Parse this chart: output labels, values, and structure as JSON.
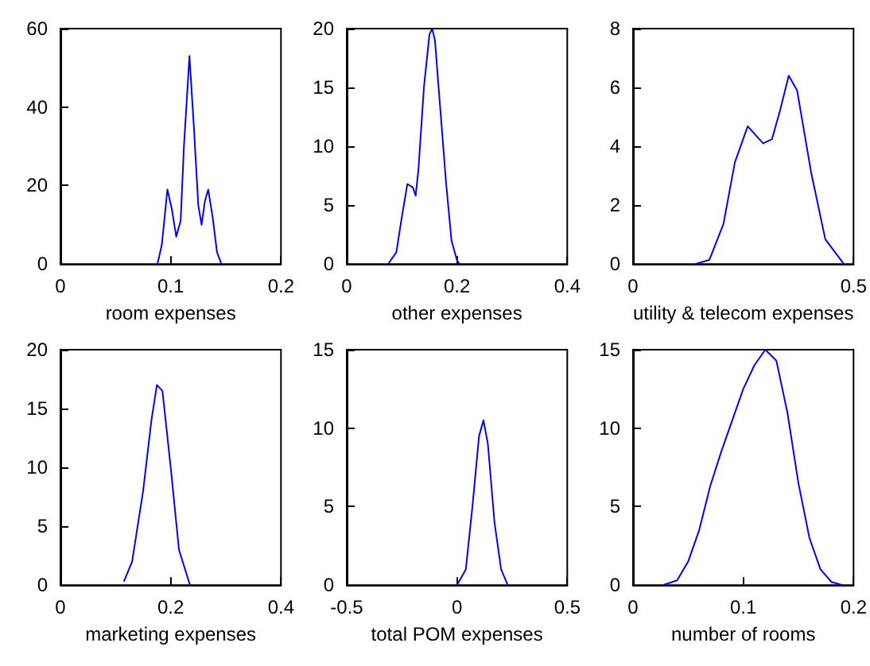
{
  "chart_data": [
    {
      "type": "line",
      "xlabel": "room expenses",
      "color": "#0000ff",
      "xlim": [
        0,
        0.2
      ],
      "ylim": [
        0,
        60
      ],
      "xticks": [
        0,
        0.1,
        0.2
      ],
      "yticks": [
        0,
        20,
        40,
        60
      ],
      "grid": false,
      "x": [
        0.088,
        0.092,
        0.097,
        0.101,
        0.105,
        0.109,
        0.112,
        0.117,
        0.121,
        0.125,
        0.128,
        0.131,
        0.134,
        0.138,
        0.142,
        0.146
      ],
      "values": [
        0,
        5,
        19,
        14,
        7,
        11,
        30,
        53,
        35,
        15,
        10,
        16,
        19,
        12,
        3,
        0
      ]
    },
    {
      "type": "line",
      "xlabel": "other expenses",
      "color": "#0000ff",
      "xlim": [
        0,
        0.4
      ],
      "ylim": [
        0,
        20
      ],
      "xticks": [
        0,
        0.2,
        0.4
      ],
      "yticks": [
        0,
        5,
        10,
        15,
        20
      ],
      "grid": false,
      "x": [
        0.075,
        0.09,
        0.1,
        0.11,
        0.12,
        0.125,
        0.13,
        0.14,
        0.15,
        0.155,
        0.16,
        0.17,
        0.18,
        0.19,
        0.2,
        0.205
      ],
      "values": [
        0,
        1,
        4,
        6.8,
        6.5,
        5.8,
        8,
        15,
        19.5,
        20,
        19,
        13,
        7,
        2,
        0.3,
        0
      ]
    },
    {
      "type": "line",
      "xlabel": "utility & telecom expenses",
      "color": "#0000ff",
      "xlim": [
        0,
        0.5
      ],
      "ylim": [
        0,
        8
      ],
      "xticks": [
        0,
        0.5
      ],
      "yticks": [
        0,
        2,
        4,
        6,
        8
      ],
      "grid": false,
      "x": [
        0.141,
        0.173,
        0.205,
        0.231,
        0.26,
        0.295,
        0.315,
        0.333,
        0.353,
        0.372,
        0.404,
        0.436,
        0.478
      ],
      "values": [
        0,
        0.14,
        1.36,
        3.46,
        4.68,
        4.1,
        4.24,
        5.2,
        6.4,
        5.9,
        3.1,
        0.84,
        0
      ]
    },
    {
      "type": "line",
      "xlabel": "marketing expenses",
      "color": "#0000ff",
      "xlim": [
        0,
        0.4
      ],
      "ylim": [
        0,
        20
      ],
      "xticks": [
        0,
        0.2,
        0.4
      ],
      "yticks": [
        0,
        5,
        10,
        15,
        20
      ],
      "grid": false,
      "x": [
        0.115,
        0.13,
        0.15,
        0.165,
        0.175,
        0.185,
        0.2,
        0.215,
        0.235
      ],
      "values": [
        0.3,
        2,
        8,
        14,
        17,
        16.5,
        10,
        3,
        0
      ]
    },
    {
      "type": "line",
      "xlabel": "total POM expenses",
      "color": "#0000ff",
      "xlim": [
        -0.5,
        0.5
      ],
      "ylim": [
        0,
        15
      ],
      "xticks": [
        -0.5,
        0,
        0.5
      ],
      "yticks": [
        0,
        5,
        10,
        15
      ],
      "grid": false,
      "x": [
        0,
        0.04,
        0.07,
        0.1,
        0.12,
        0.14,
        0.17,
        0.2,
        0.23
      ],
      "values": [
        0,
        1,
        5,
        9.5,
        10.5,
        9,
        4,
        1,
        0
      ]
    },
    {
      "type": "line",
      "xlabel": "number of rooms",
      "color": "#0000ff",
      "xlim": [
        0,
        0.2
      ],
      "ylim": [
        0,
        15
      ],
      "xticks": [
        0,
        0.1,
        0.2
      ],
      "yticks": [
        0,
        5,
        10,
        15
      ],
      "grid": false,
      "x": [
        0.027,
        0.04,
        0.05,
        0.06,
        0.07,
        0.08,
        0.09,
        0.1,
        0.11,
        0.12,
        0.13,
        0.14,
        0.15,
        0.16,
        0.17,
        0.18,
        0.19
      ],
      "values": [
        0,
        0.3,
        1.5,
        3.5,
        6.3,
        8.5,
        10.5,
        12.5,
        14,
        15,
        14.3,
        11,
        6.5,
        3,
        1,
        0.2,
        0
      ]
    }
  ]
}
